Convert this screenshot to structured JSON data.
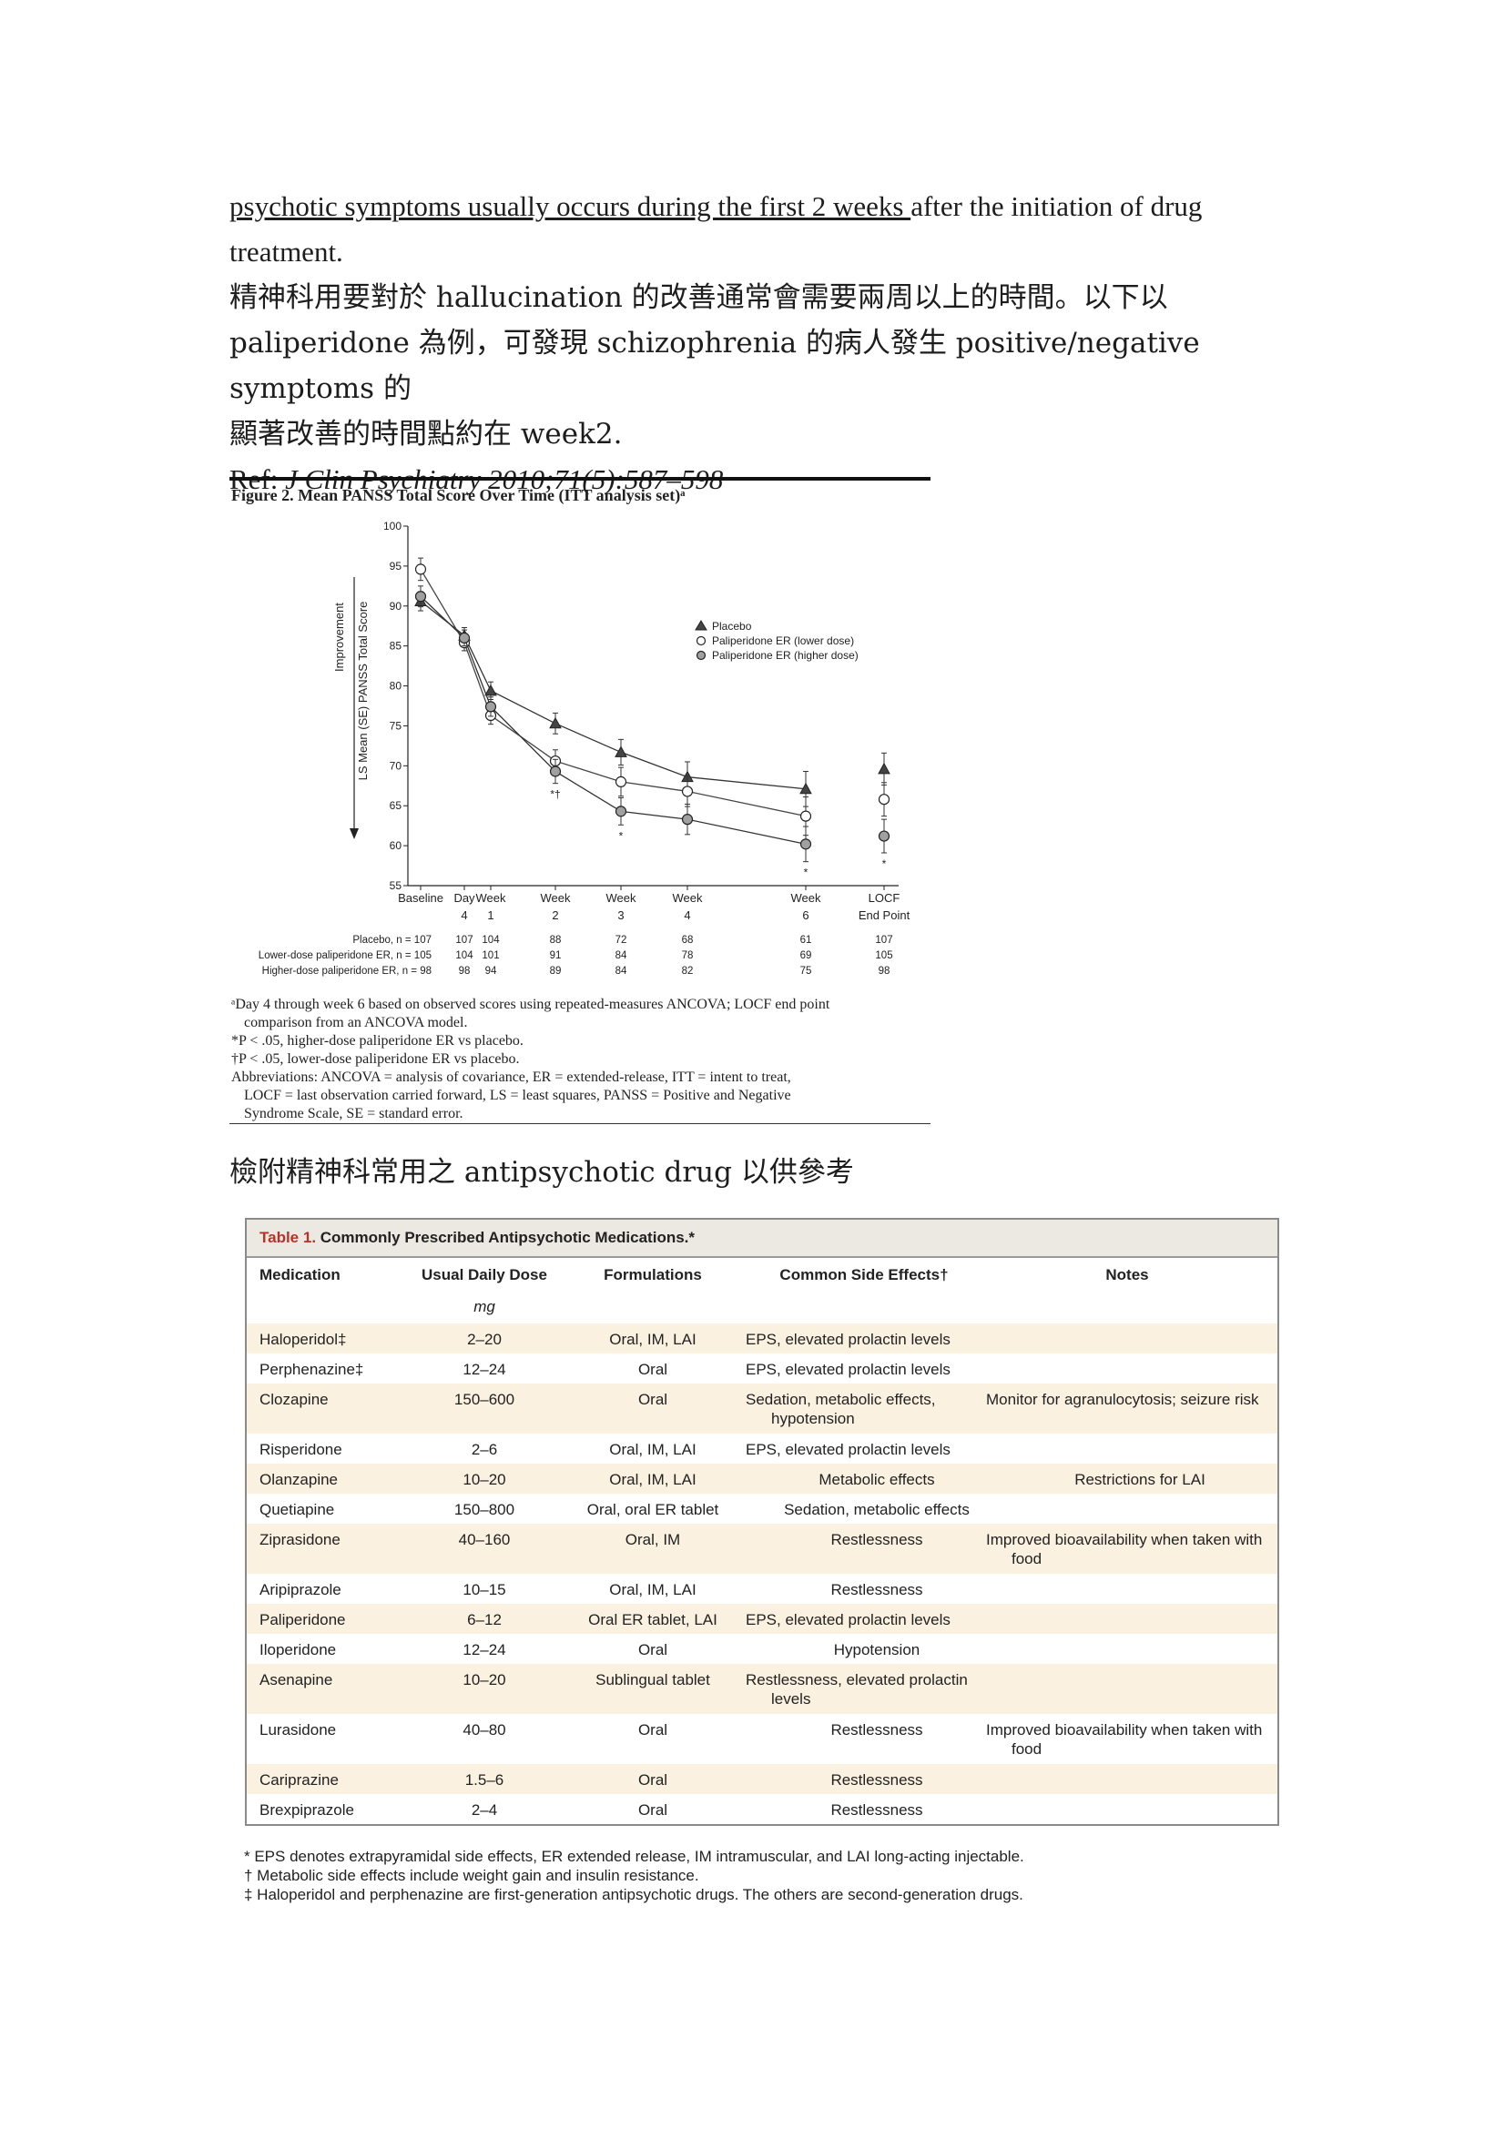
{
  "text": {
    "line1_underlined": "psychotic symptoms usually occurs during the first 2 weeks ",
    "line1_rest": "after the initiation of drug",
    "line2": "treatment.",
    "line3": "精神科用要對於 hallucination 的改善通常會需要兩周以上的時間。以下以",
    "line4": "paliperidone 為例，可發現 schizophrenia 的病人發生 positive/negative symptoms 的",
    "line5": "顯著改善的時間點約在 week2.",
    "ref_prefix": "Ref: ",
    "ref_citation": "J Clin Psychiatry 2010;71(5):587–598",
    "table_heading": "檢附精神科常用之 antipsychotic drug 以供參考"
  },
  "figure": {
    "caption": "Figure 2. Mean PANSS Total Score Over Time (ITT analysis set)ᵃ",
    "footnotes": [
      "ᵃDay 4 through week 6 based on observed scores using repeated-measures ANCOVA; LOCF end point",
      "comparison from an ANCOVA model.",
      "*P < .05, higher-dose paliperidone ER vs placebo.",
      "†P < .05, lower-dose paliperidone ER vs placebo.",
      "Abbreviations: ANCOVA = analysis of covariance, ER = extended-release, ITT = intent to treat,",
      "LOCF = last observation carried forward, LS = least squares, PANSS = Positive and Negative",
      "Syndrome Scale, SE = standard error."
    ]
  },
  "chart_data": {
    "type": "line",
    "title": "Figure 2. Mean PANSS Total Score Over Time (ITT analysis set)ᵃ",
    "ylabel": "LS Mean (SE) PANSS Total Score",
    "ylabel_arrow": "Improvement",
    "ylim": [
      55,
      100
    ],
    "yticks": [
      55,
      60,
      65,
      70,
      75,
      80,
      85,
      90,
      95,
      100
    ],
    "categories": [
      {
        "l1": "Baseline",
        "l2": ""
      },
      {
        "l1": "Day",
        "l2": "4"
      },
      {
        "l1": "Week",
        "l2": "1"
      },
      {
        "l1": "Week",
        "l2": "2"
      },
      {
        "l1": "Week",
        "l2": "3"
      },
      {
        "l1": "Week",
        "l2": "4"
      },
      {
        "l1": "Week",
        "l2": "6"
      },
      {
        "l1": "LOCF",
        "l2": "End Point"
      }
    ],
    "x_days": [
      0,
      4,
      7,
      14,
      21,
      28,
      42,
      51
    ],
    "series": [
      {
        "name": "Placebo",
        "marker": "triangle",
        "values": [
          90.6,
          86.3,
          79.4,
          75.3,
          71.7,
          68.6,
          67.1,
          69.6
        ]
      },
      {
        "name": "Paliperidone ER (lower dose)",
        "marker": "open-circle",
        "values": [
          94.6,
          85.4,
          76.3,
          70.6,
          68.0,
          66.8,
          63.7,
          65.8
        ]
      },
      {
        "name": "Paliperidone ER (higher dose)",
        "marker": "gray-circle",
        "values": [
          91.2,
          86.0,
          77.4,
          69.3,
          64.3,
          63.3,
          60.2,
          61.2
        ]
      }
    ],
    "error": [
      [
        1.2,
        1.0,
        1.1,
        1.3,
        1.6,
        1.9,
        2.2,
        2.0
      ],
      [
        1.4,
        1.0,
        1.1,
        1.4,
        1.8,
        1.9,
        2.4,
        2.1
      ],
      [
        1.3,
        1.0,
        1.2,
        1.5,
        1.7,
        1.9,
        2.2,
        2.1
      ]
    ],
    "significance": [
      {
        "index": 3,
        "label": "*†"
      },
      {
        "index": 4,
        "label": "*"
      },
      {
        "index": 6,
        "label": "*"
      },
      {
        "index": 7,
        "label": "*"
      }
    ],
    "n_table": {
      "rows": [
        {
          "label": "Placebo, n = 107",
          "values": [
            "107",
            "104",
            "88",
            "72",
            "68",
            "61",
            "107"
          ]
        },
        {
          "label": "Lower-dose paliperidone ER, n = 105",
          "values": [
            "104",
            "101",
            "91",
            "84",
            "78",
            "69",
            "105"
          ]
        },
        {
          "label": "Higher-dose paliperidone ER, n =  98",
          "values": [
            "98",
            "94",
            "89",
            "84",
            "82",
            "75",
            "98"
          ]
        }
      ]
    },
    "legend_position": "top-right"
  },
  "table": {
    "title_prefix": "Table 1.",
    "title_rest": " Commonly Prescribed Antipsychotic Medications.*",
    "headers": {
      "medication": "Medication",
      "dose": "Usual Daily Dose",
      "formulations": "Formulations",
      "side_effects": "Common Side Effects†",
      "notes": "Notes"
    },
    "dose_unit": "mg",
    "rows": [
      {
        "medication": "Haloperidol‡",
        "dose": "2–20",
        "formulations": "Oral, IM, LAI",
        "side_effects": "EPS, elevated prolactin levels",
        "notes": ""
      },
      {
        "medication": "Perphenazine‡",
        "dose": "12–24",
        "formulations": "Oral",
        "side_effects": "EPS, elevated prolactin levels",
        "notes": ""
      },
      {
        "medication": "Clozapine",
        "dose": "150–600",
        "formulations": "Oral",
        "side_effects": "Sedation, metabolic effects, hypotension",
        "notes": "Monitor for agranulocytosis; seizure risk"
      },
      {
        "medication": "Risperidone",
        "dose": "2–6",
        "formulations": "Oral, IM, LAI",
        "side_effects": "EPS, elevated prolactin levels",
        "notes": ""
      },
      {
        "medication": "Olanzapine",
        "dose": "10–20",
        "formulations": "Oral, IM, LAI",
        "side_effects": "Metabolic effects",
        "notes": "Restrictions for LAI"
      },
      {
        "medication": "Quetiapine",
        "dose": "150–800",
        "formulations": "Oral, oral ER tablet",
        "side_effects": "Sedation, metabolic effects",
        "notes": ""
      },
      {
        "medication": "Ziprasidone",
        "dose": "40–160",
        "formulations": "Oral, IM",
        "side_effects": "Restlessness",
        "notes": "Improved bioavailability when taken with food"
      },
      {
        "medication": "Aripiprazole",
        "dose": "10–15",
        "formulations": "Oral, IM, LAI",
        "side_effects": "Restlessness",
        "notes": ""
      },
      {
        "medication": "Paliperidone",
        "dose": "6–12",
        "formulations": "Oral ER tablet, LAI",
        "side_effects": "EPS, elevated prolactin levels",
        "notes": ""
      },
      {
        "medication": "Iloperidone",
        "dose": "12–24",
        "formulations": "Oral",
        "side_effects": "Hypotension",
        "notes": ""
      },
      {
        "medication": "Asenapine",
        "dose": "10–20",
        "formulations": "Sublingual tablet",
        "side_effects": "Restlessness, elevated prolactin levels",
        "notes": ""
      },
      {
        "medication": "Lurasidone",
        "dose": "40–80",
        "formulations": "Oral",
        "side_effects": "Restlessness",
        "notes": "Improved bioavailability when taken with food"
      },
      {
        "medication": "Cariprazine",
        "dose": "1.5–6",
        "formulations": "Oral",
        "side_effects": "Restlessness",
        "notes": ""
      },
      {
        "medication": "Brexpiprazole",
        "dose": "2–4",
        "formulations": "Oral",
        "side_effects": "Restlessness",
        "notes": ""
      }
    ],
    "footnotes": [
      "* EPS denotes extrapyramidal side effects, ER extended release, IM intramuscular, and LAI long-acting injectable.",
      "† Metabolic side effects include weight gain and insulin resistance.",
      "‡ Haloperidol and perphenazine are first-generation antipsychotic drugs. The others are second-generation drugs."
    ]
  },
  "colors": {
    "table_title_red": "#b8322a",
    "row_shade": "#fbf1e1",
    "border": "#8a8a8a"
  }
}
